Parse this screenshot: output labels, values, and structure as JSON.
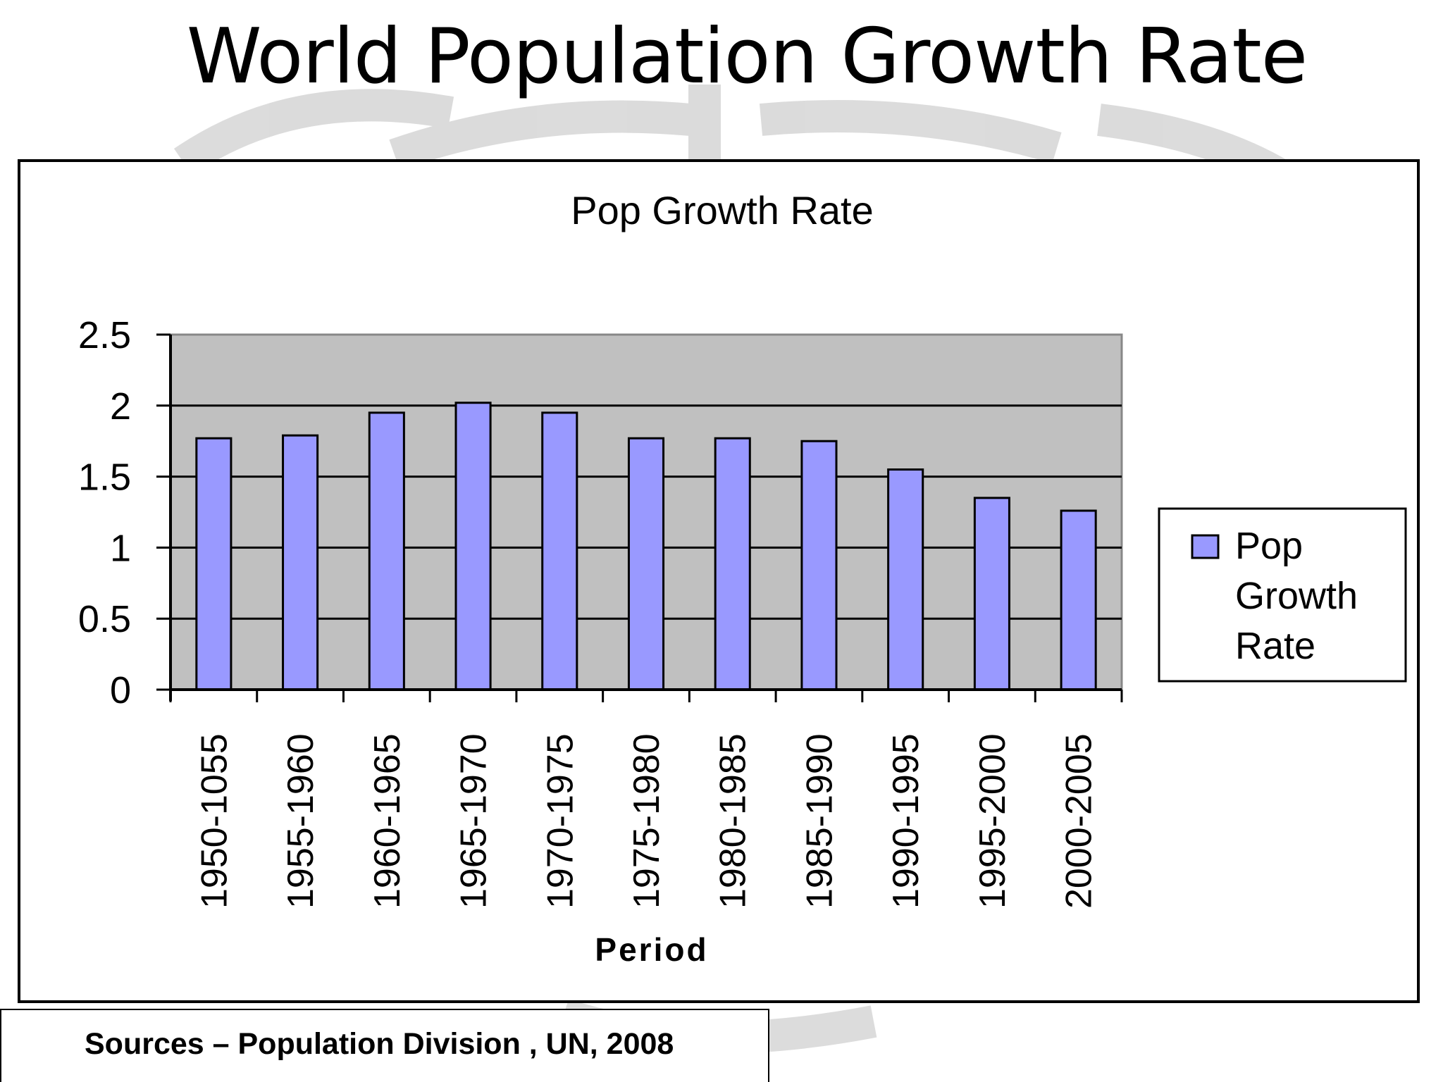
{
  "slide": {
    "title": "World Population Growth Rate",
    "source": "Sources – Population Division , UN, 2008"
  },
  "colors": {
    "bar_fill": "#9999ff",
    "plot_background": "#c0c0c0",
    "watermark": "#d6d6d6"
  },
  "chart_data": {
    "type": "bar",
    "title": "Pop Growth Rate",
    "xlabel": "Period",
    "ylabel": "",
    "categories": [
      "1950-1055",
      "1955-1960",
      "1960-1965",
      "1965-1970",
      "1970-1975",
      "1975-1980",
      "1980-1985",
      "1985-1990",
      "1990-1995",
      "1995-2000",
      "2000-2005"
    ],
    "series": [
      {
        "name": "Pop Growth Rate",
        "values": [
          1.77,
          1.79,
          1.95,
          2.02,
          1.95,
          1.77,
          1.77,
          1.75,
          1.55,
          1.35,
          1.26
        ]
      }
    ],
    "ylim": [
      0,
      2.5
    ],
    "yticks": [
      "0",
      "0.5",
      "1",
      "1.5",
      "2",
      "2.5"
    ],
    "legend": {
      "position": "right",
      "label_lines": [
        "Pop",
        "Growth",
        "Rate"
      ]
    },
    "grid": true
  }
}
